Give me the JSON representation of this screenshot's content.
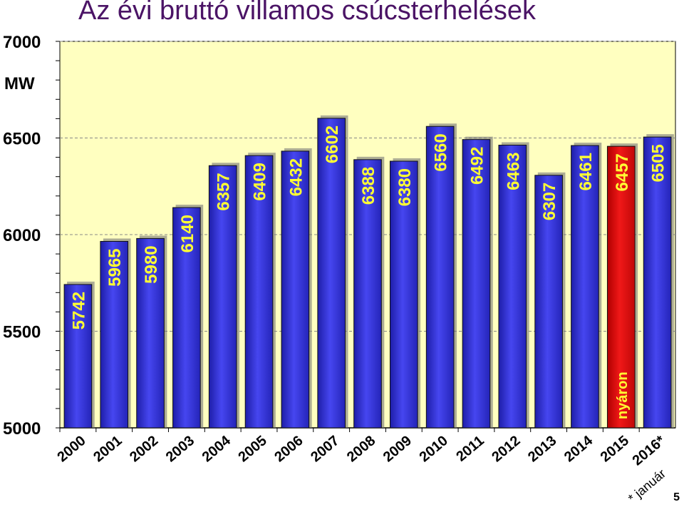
{
  "title": "Az évi bruttó villamos csúcsterhelések",
  "unit_label": "MW",
  "page_number": "5",
  "footnote": "* január",
  "colors": {
    "plot_background": "#FFFFC0",
    "bar": "#3333E0",
    "bar_highlight": "#E81010",
    "bar_label": "#FFFF33",
    "title": "#4B1466"
  },
  "chart_data": {
    "type": "bar",
    "title": "Az évi bruttó villamos csúcsterhelések",
    "ylabel": "MW",
    "ylim": [
      5000,
      7000
    ],
    "yticks": [
      "5000",
      "5500",
      "6000",
      "6500",
      "7000"
    ],
    "grid": true,
    "categories": [
      "2000",
      "2001",
      "2002",
      "2003",
      "2004",
      "2005",
      "2006",
      "2007",
      "2008",
      "2009",
      "2010",
      "2011",
      "2012",
      "2013",
      "2014",
      "2015",
      "2016*"
    ],
    "values": [
      5742,
      5965,
      5980,
      6140,
      6357,
      6409,
      6432,
      6602,
      6388,
      6380,
      6560,
      6492,
      6463,
      6307,
      6461,
      6457,
      6505
    ],
    "highlight_index": 15,
    "highlight_note": "nyáron"
  }
}
